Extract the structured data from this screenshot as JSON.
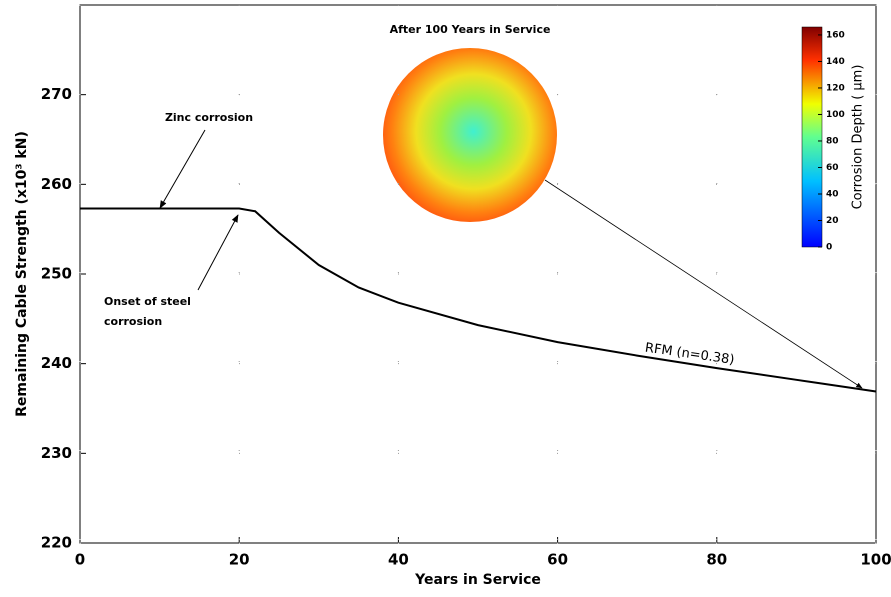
{
  "chart_data": {
    "type": "line",
    "x_label": "Years in Service",
    "y_label": "Remaining Cable Strength (x10³ kN)",
    "x": [
      0,
      10,
      20,
      22,
      25,
      30,
      35,
      40,
      50,
      60,
      70,
      80,
      90,
      100
    ],
    "series": [
      {
        "name": "RFM (n=0.38)",
        "color": "#000000",
        "values": [
          257.3,
          257.3,
          257.3,
          257.0,
          254.6,
          251.0,
          248.5,
          246.8,
          244.3,
          242.4,
          240.9,
          239.5,
          238.2,
          236.9
        ]
      }
    ],
    "xlim": [
      0,
      100
    ],
    "xticks": [
      0,
      20,
      40,
      60,
      80,
      100
    ],
    "ylim": [
      220,
      280
    ],
    "yticks": [
      220,
      230,
      240,
      250,
      260,
      270
    ],
    "grid": true,
    "annotations": {
      "zinc": "Zinc corrosion",
      "onset": [
        "Onset of steel",
        "corrosion"
      ],
      "inset_title": "After 100 Years in Service"
    },
    "colorbar": {
      "label": "Corrosion Depth ( μm)",
      "clim": [
        0,
        166
      ],
      "ticks": [
        0,
        20,
        40,
        60,
        80,
        100,
        120,
        140,
        160
      ]
    }
  }
}
